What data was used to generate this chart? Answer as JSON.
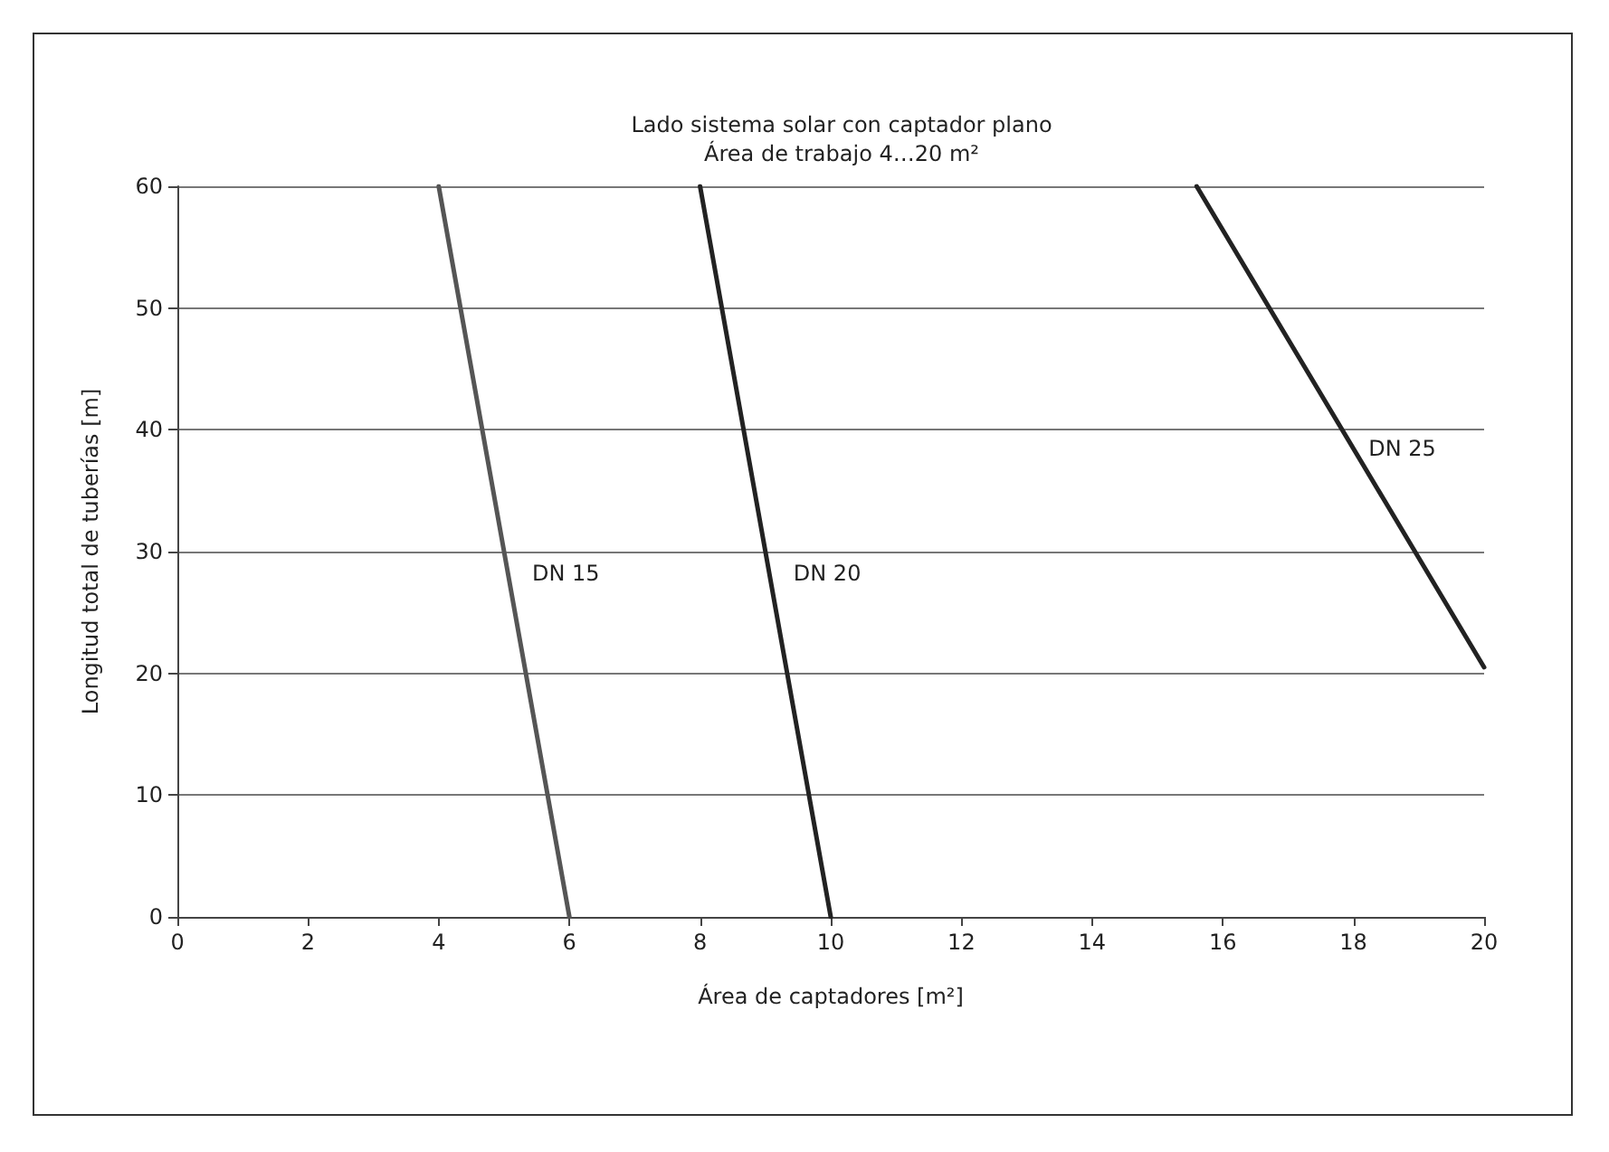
{
  "chart_data": {
    "type": "line",
    "title": "Lado sistema solar con captador plano",
    "subtitle": "Área de trabajo 4…20 m²",
    "xlabel": "Área de captadores [m²]",
    "ylabel": "Longitud total de tuberías [m]",
    "series": [
      {
        "name": "DN 15",
        "color": "#555555",
        "x": [
          4,
          6
        ],
        "values": [
          60,
          0
        ]
      },
      {
        "name": "DN 20",
        "color": "#222222",
        "x": [
          8,
          10
        ],
        "values": [
          60,
          0
        ]
      },
      {
        "name": "DN 25",
        "color": "#222222",
        "x": [
          15.6,
          20
        ],
        "values": [
          60,
          20.5
        ]
      }
    ],
    "xlim": [
      0,
      20
    ],
    "xticks": [
      0,
      2,
      4,
      6,
      8,
      10,
      12,
      14,
      16,
      18,
      20
    ],
    "ylim": [
      0,
      60
    ],
    "yticks": [
      0,
      10,
      20,
      30,
      40,
      50,
      60
    ],
    "grid": "y",
    "legend": false,
    "marker": "none",
    "line_style": "solid"
  }
}
